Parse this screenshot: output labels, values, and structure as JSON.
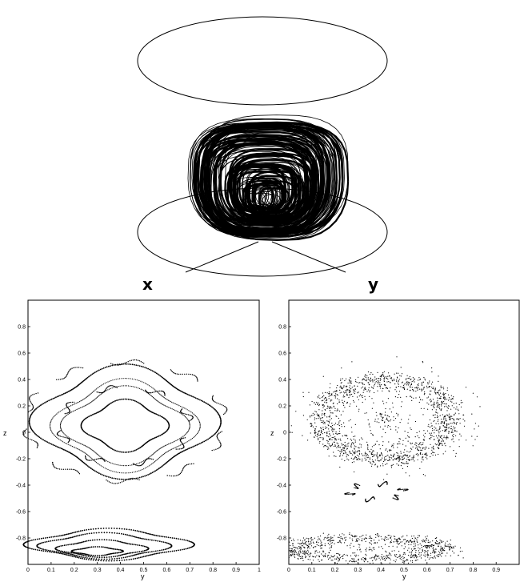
{
  "attractor_panel": {
    "axis_labels": {
      "x": "x",
      "y": "y"
    }
  },
  "chart_data": [
    {
      "type": "scatter",
      "xlabel": "y",
      "ylabel": "z",
      "xlim": [
        0,
        1
      ],
      "ylim": [
        -1,
        1
      ],
      "xticks": [
        "0",
        "0.1",
        "0.2",
        "0.3",
        "0.4",
        "0.5",
        "0.6",
        "0.7",
        "0.8",
        "0.9",
        "1"
      ],
      "yticks": [
        "-0.8",
        "-0.6",
        "-0.4",
        "-0.2",
        "0",
        "0.2",
        "0.4",
        "0.6",
        "0.8"
      ],
      "ytick_values": [
        -0.8,
        -0.6,
        -0.4,
        -0.2,
        0,
        0.2,
        0.4,
        0.6,
        0.8
      ],
      "grid": false,
      "series": [
        {
          "shape": "ellipse",
          "center": [
            0.42,
            0.05
          ],
          "radius": [
            0.17,
            0.18
          ],
          "points": 160
        },
        {
          "shape": "ring-dotted",
          "center": [
            0.42,
            0.05
          ],
          "radius": [
            0.25,
            0.27
          ],
          "points": 240
        },
        {
          "shape": "ring-dotted",
          "center": [
            0.42,
            0.05
          ],
          "radius": [
            0.29,
            0.32
          ],
          "points": 260
        },
        {
          "shape": "ellipse",
          "center": [
            0.42,
            0.08
          ],
          "radius": [
            0.37,
            0.39
          ],
          "points": 320
        },
        {
          "shape": "islands",
          "center": [
            0.42,
            0.05
          ],
          "radius": [
            0.28,
            0.29
          ],
          "count": 8
        },
        {
          "shape": "islands",
          "center": [
            0.42,
            0.08
          ],
          "radius": [
            0.43,
            0.45
          ],
          "count": 10
        },
        {
          "shape": "ellipse",
          "center": [
            0.3,
            -0.9
          ],
          "radius": [
            0.1,
            0.03
          ],
          "points": 80
        },
        {
          "shape": "ellipse",
          "center": [
            0.32,
            -0.88
          ],
          "radius": [
            0.18,
            0.06
          ],
          "points": 120
        },
        {
          "shape": "ellipse",
          "center": [
            0.33,
            -0.86
          ],
          "radius": [
            0.26,
            0.09
          ],
          "points": 160
        },
        {
          "shape": "ellipse",
          "center": [
            0.35,
            -0.85
          ],
          "radius": [
            0.33,
            0.11
          ],
          "points": 200
        }
      ]
    },
    {
      "type": "scatter",
      "xlabel": "y",
      "ylabel": "z",
      "xlim": [
        0,
        1
      ],
      "ylim": [
        -1,
        1
      ],
      "xticks": [
        "0",
        "0.1",
        "0.2",
        "0.3",
        "0.4",
        "0.5",
        "0.6",
        "0.7",
        "0.8",
        "0.9"
      ],
      "yticks": [
        "-0.8",
        "-0.6",
        "-0.4",
        "-0.2",
        "0",
        "0.2",
        "0.4",
        "0.6",
        "0.8"
      ],
      "ytick_values": [
        -0.8,
        -0.6,
        -0.4,
        -0.2,
        0,
        0.2,
        0.4,
        0.6,
        0.8
      ],
      "grid": false,
      "series": [
        {
          "shape": "chaotic-sea",
          "center": [
            0.42,
            0.1
          ],
          "radius": [
            0.28,
            0.3
          ],
          "points": 1600
        },
        {
          "shape": "chaotic-sea",
          "center": [
            0.33,
            -0.88
          ],
          "radius": [
            0.33,
            0.08
          ],
          "points": 900
        },
        {
          "shape": "islands",
          "center": [
            0.38,
            -0.45
          ],
          "radius": [
            0.12,
            0.06
          ],
          "count": 6
        }
      ]
    }
  ]
}
